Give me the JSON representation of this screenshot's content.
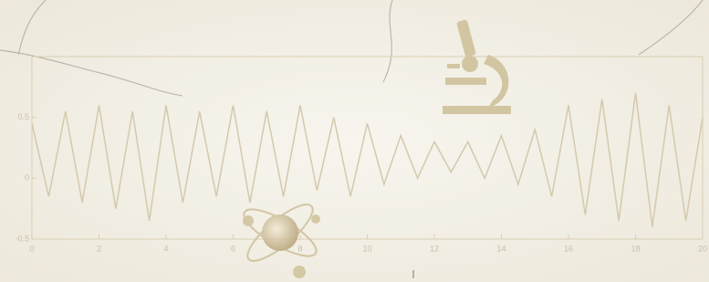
{
  "chart_data": {
    "type": "line",
    "x": [
      0,
      0.5,
      1,
      1.5,
      2,
      2.5,
      3,
      3.5,
      4,
      4.5,
      5,
      5.5,
      6,
      6.5,
      7,
      7.5,
      8,
      8.5,
      9,
      9.5,
      10,
      10.5,
      11,
      11.5,
      12,
      12.5,
      13,
      13.5,
      14,
      14.5,
      15,
      15.5,
      16,
      16.5,
      17,
      17.5,
      18,
      18.5,
      19,
      19.5,
      20
    ],
    "series": [
      {
        "color": "#d3c9ad",
        "values": [
          0.45,
          -0.15,
          0.55,
          -0.2,
          0.6,
          -0.25,
          0.55,
          -0.35,
          0.6,
          -0.2,
          0.55,
          -0.15,
          0.6,
          -0.2,
          0.55,
          -0.15,
          0.6,
          -0.1,
          0.5,
          -0.15,
          0.45,
          -0.05,
          0.35,
          0,
          0.3,
          0.05,
          0.3,
          0,
          0.35,
          -0.05,
          0.4,
          -0.15,
          0.6,
          -0.3,
          0.65,
          -0.35,
          0.7,
          -0.4,
          0.6,
          -0.35,
          0.5
        ]
      }
    ],
    "xlim": [
      0,
      20
    ],
    "xticks": [
      0,
      2,
      4,
      6,
      8,
      10,
      12,
      14,
      16,
      18,
      20
    ],
    "ylim": [
      -0.5,
      1
    ],
    "yticks": [
      -0.5,
      0,
      0.5
    ]
  }
}
